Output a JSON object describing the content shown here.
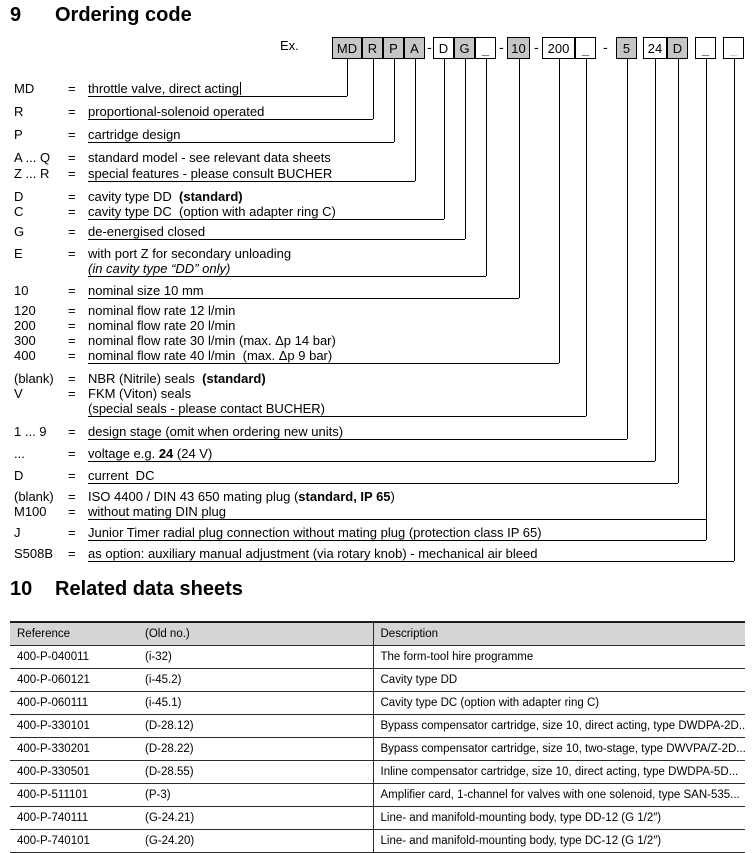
{
  "colors": {
    "box_fill_gray": "#c6c6c6",
    "table_header_bg": "#d5d5d5",
    "line_color": "#000000",
    "muted_underscore": "#999999"
  },
  "section9": {
    "number": "9",
    "title": "Ordering code",
    "example_label": "Ex.",
    "separator": "-",
    "code_boxes": [
      {
        "label": "MD",
        "gray": true
      },
      {
        "label": "R",
        "gray": true
      },
      {
        "label": "P",
        "gray": true
      },
      {
        "label": "A",
        "gray": true
      },
      {
        "label": "D",
        "gray": false
      },
      {
        "label": "G",
        "gray": true
      },
      {
        "label": "_",
        "gray": false,
        "placeholder": true
      },
      {
        "label": "10",
        "gray": true
      },
      {
        "label": "200",
        "gray": false
      },
      {
        "label": "_",
        "gray": false,
        "placeholder": true
      },
      {
        "label": "5",
        "gray": true
      },
      {
        "label": "24",
        "gray": false
      },
      {
        "label": "D",
        "gray": true
      },
      {
        "label": "_",
        "gray": false,
        "placeholder": true
      },
      {
        "label": "_",
        "gray": false,
        "placeholder": true,
        "muted": true
      }
    ],
    "legend_rows": [
      {
        "key": "MD",
        "eq": "=",
        "segments": [
          {
            "text": "throttle valve, direct acting"
          }
        ],
        "cursor": true
      },
      {
        "key": "R",
        "eq": "=",
        "segments": [
          {
            "text": "proportional-solenoid operated"
          }
        ]
      },
      {
        "key": "P",
        "eq": "=",
        "segments": [
          {
            "text": "cartridge design"
          }
        ]
      },
      {
        "key": "A ... Q",
        "eq": "=",
        "segments": [
          {
            "text": "standard model - see relevant data sheets"
          }
        ]
      },
      {
        "key": "Z ... R",
        "eq": "=",
        "segments": [
          {
            "text": "special features - please consult BUCHER"
          }
        ]
      },
      {
        "key": "D",
        "eq": "=",
        "segments": [
          {
            "text": "cavity type DD  "
          },
          {
            "text": "(standard)",
            "bold": true
          }
        ]
      },
      {
        "key": "C",
        "eq": "=",
        "segments": [
          {
            "text": "cavity type DC  (option with adapter ring C)"
          }
        ]
      },
      {
        "key": "G",
        "eq": "=",
        "segments": [
          {
            "text": "de-energised closed"
          }
        ]
      },
      {
        "key": "E",
        "eq": "=",
        "segments": [
          {
            "text": "with port Z for secondary unloading"
          }
        ]
      },
      {
        "key": "",
        "eq": "",
        "segments": [
          {
            "text": "(in cavity type “DD” only)",
            "italic": true
          }
        ]
      },
      {
        "key": "10",
        "eq": "=",
        "segments": [
          {
            "text": "nominal size 10 mm"
          }
        ]
      },
      {
        "key": "120",
        "eq": "=",
        "segments": [
          {
            "text": "nominal flow rate 12 l/min"
          }
        ]
      },
      {
        "key": "200",
        "eq": "=",
        "segments": [
          {
            "text": "nominal flow rate 20 l/min"
          }
        ]
      },
      {
        "key": "300",
        "eq": "=",
        "segments": [
          {
            "text": "nominal flow rate 30 l/min (max. Δp 14 bar)"
          }
        ]
      },
      {
        "key": "400",
        "eq": "=",
        "segments": [
          {
            "text": "nominal flow rate 40 l/min  (max. Δp 9 bar)"
          }
        ]
      },
      {
        "key": "(blank)",
        "eq": "=",
        "segments": [
          {
            "text": "NBR (Nitrile) seals  "
          },
          {
            "text": "(standard)",
            "bold": true
          }
        ]
      },
      {
        "key": "V",
        "eq": "=",
        "segments": [
          {
            "text": "FKM (Viton) seals"
          }
        ]
      },
      {
        "key": "",
        "eq": "",
        "segments": [
          {
            "text": "(special seals - please contact BUCHER)"
          }
        ]
      },
      {
        "key": "1 ... 9",
        "eq": "=",
        "segments": [
          {
            "text": "design stage (omit when ordering new units)"
          }
        ]
      },
      {
        "key": "...",
        "eq": "=",
        "segments": [
          {
            "text": "voltage e.g. "
          },
          {
            "text": "24",
            "bold": true
          },
          {
            "text": " (24 V)"
          }
        ]
      },
      {
        "key": "D",
        "eq": "=",
        "segments": [
          {
            "text": "current  DC"
          }
        ]
      },
      {
        "key": "(blank)",
        "eq": "=",
        "segments": [
          {
            "text": "ISO 4400 / DIN 43 650 mating plug ("
          },
          {
            "text": "standard, IP 65",
            "bold": true
          },
          {
            "text": ")"
          }
        ]
      },
      {
        "key": "M100",
        "eq": "=",
        "segments": [
          {
            "text": "without mating DIN plug"
          }
        ]
      },
      {
        "key": "J",
        "eq": "=",
        "segments": [
          {
            "text": "Junior Timer radial plug connection without mating plug (protection class IP 65)"
          }
        ]
      },
      {
        "key": "S508B",
        "eq": "=",
        "segments": [
          {
            "text": "as option: auxiliary manual adjustment (via rotary knob) - mechanical air bleed"
          }
        ]
      }
    ]
  },
  "section10": {
    "number": "10",
    "title": "Related data sheets",
    "table": {
      "headers": [
        "Reference",
        "(Old no.)",
        "Description"
      ],
      "rows": [
        [
          "400-P-040011",
          "(i-32)",
          "The form-tool hire programme"
        ],
        [
          "400-P-060121",
          "(i-45.2)",
          "Cavity type DD"
        ],
        [
          "400-P-060111",
          "(i-45.1)",
          "Cavity type DC (option with adapter ring C)"
        ],
        [
          "400-P-330101",
          "(D-28.12)",
          "Bypass compensator cartridge, size 10, direct acting, type DWDPA-2D..."
        ],
        [
          "400-P-330201",
          "(D-28.22)",
          "Bypass compensator cartridge, size 10, two-stage, type DWVPA/Z-2D..."
        ],
        [
          "400-P-330501",
          "(D-28.55)",
          "Inline compensator cartridge, size 10, direct acting, type DWDPA-5D..."
        ],
        [
          "400-P-511101",
          "(P-3)",
          "Amplifier card, 1-channel for valves with one solenoid, type SAN-535..."
        ],
        [
          "400-P-740111",
          "(G-24.21)",
          "Line- and manifold-mounting body, type DD-12 (G 1/2″)"
        ],
        [
          "400-P-740101",
          "(G-24.20)",
          "Line- and manifold-mounting body, type DC-12 (G 1/2″)"
        ]
      ]
    }
  }
}
